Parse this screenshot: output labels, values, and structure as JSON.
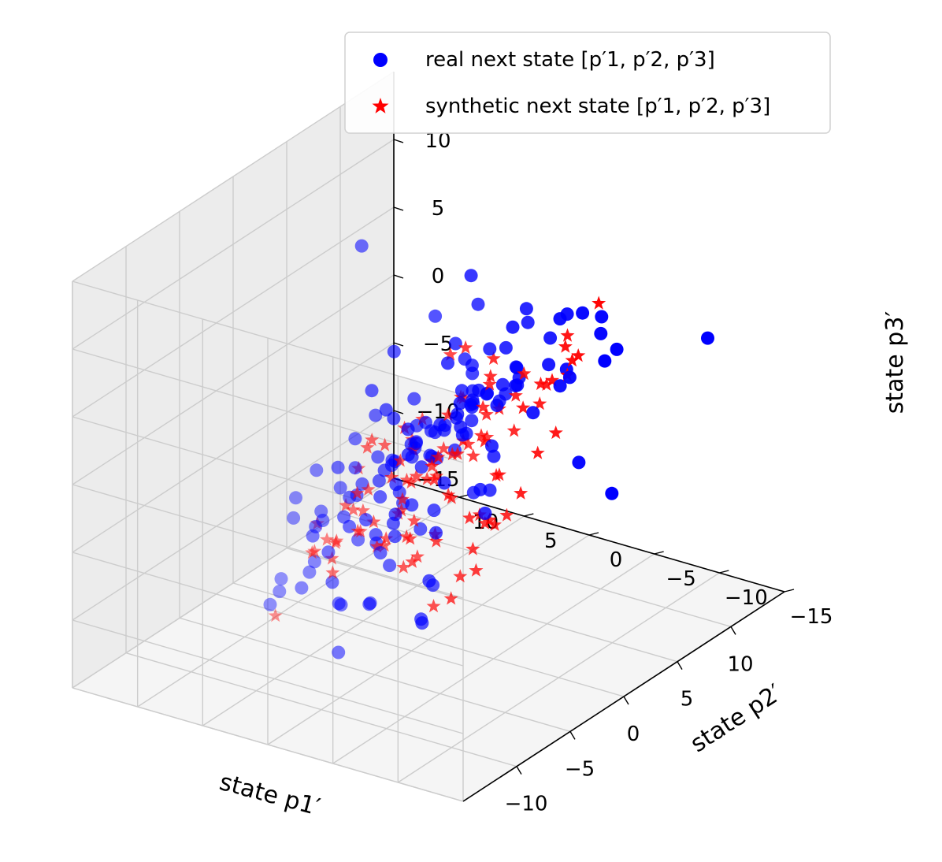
{
  "chart_data": {
    "type": "scatter",
    "projection": "3d",
    "grid": true,
    "legend_position": "upper-right",
    "xlabel": "state p1′",
    "ylabel": "state p2′",
    "zlabel": "state p3′",
    "xticks": [
      "−10",
      "−5",
      "0",
      "5",
      "10"
    ],
    "yticks": [
      "−15",
      "−10",
      "−5",
      "0",
      "5",
      "10"
    ],
    "zticks": [
      "−15",
      "−10",
      "−5",
      "0",
      "5",
      "10"
    ],
    "legend": [
      {
        "label": "real next state [p′1, p′2, p′3]",
        "marker": "circle",
        "color": "#0000ff"
      },
      {
        "label": "synthetic next state [p′1, p′2, p′3]",
        "marker": "star",
        "color": "#ff0000"
      }
    ],
    "series": [
      {
        "name": "real next state [p′1, p′2, p′3]",
        "color": "#0000ff",
        "marker": "circle",
        "points": [
          [
            -2.1,
            3.4,
            14.2
          ],
          [
            -4.0,
            -7.1,
            13.8
          ],
          [
            -5.2,
            -4.8,
            12.9
          ],
          [
            1.8,
            -0.6,
            6.1
          ],
          [
            7.5,
            2.9,
            7.2
          ],
          [
            -3.1,
            -5.9,
            8.5
          ],
          [
            -6.4,
            -1.2,
            5.2
          ],
          [
            -4.5,
            -2.8,
            3.9
          ],
          [
            4.2,
            6.1,
            2.4
          ],
          [
            -6.0,
            -8.4,
            1.3
          ],
          [
            -1.2,
            -4.3,
            3.0
          ],
          [
            -4.2,
            -4.1,
            1.7
          ],
          [
            -1.8,
            -6.2,
            -1.3
          ],
          [
            -7.9,
            -2.5,
            -3.1
          ],
          [
            -8.8,
            1.9,
            -6.0
          ],
          [
            -6.5,
            -0.8,
            -8.8
          ],
          [
            -3.0,
            -1.9,
            -11.4
          ],
          [
            -3.3,
            4.2,
            -15.4
          ],
          [
            -1.2,
            -0.5,
            -13.0
          ],
          [
            2.5,
            2.0,
            -12.5
          ],
          [
            4.1,
            2.8,
            -10.0
          ],
          [
            6.3,
            1.2,
            -7.5
          ],
          [
            8.2,
            -4.8,
            -4.8
          ],
          [
            9.7,
            -6.1,
            -7.5
          ],
          [
            6.5,
            1.0,
            -9.3
          ],
          [
            1.6,
            2.6,
            -6.6
          ],
          [
            -0.7,
            -1.0,
            -4.8
          ],
          [
            -1.7,
            1.3,
            -5.9
          ],
          [
            0.8,
            0.4,
            -2.0
          ],
          [
            2.2,
            -1.1,
            -0.6
          ],
          [
            3.6,
            -0.9,
            1.8
          ],
          [
            1.0,
            -4.2,
            -0.8
          ],
          [
            -2.9,
            -2.5,
            0.8
          ],
          [
            -0.5,
            -3.8,
            4.0
          ],
          [
            3.1,
            -3.4,
            5.9
          ],
          [
            5.6,
            -0.1,
            3.6
          ],
          [
            3.8,
            -4.4,
            8.7
          ],
          [
            0.4,
            -6.4,
            6.7
          ],
          [
            -3.8,
            -0.9,
            -1.9
          ],
          [
            -5.7,
            -1.7,
            -6.1
          ],
          [
            -0.9,
            3.3,
            -7.7
          ],
          [
            2.7,
            4.8,
            -10.1
          ],
          [
            5.6,
            7.1,
            -8.4
          ],
          [
            7.5,
            3.7,
            -4.2
          ],
          [
            4.7,
            1.3,
            0.6
          ],
          [
            3.2,
            5.3,
            -1.8
          ],
          [
            0.7,
            6.2,
            -4.4
          ],
          [
            -2.3,
            1.8,
            -7.9
          ],
          [
            -4.6,
            3.1,
            -10.8
          ],
          [
            -1.6,
            5.4,
            -13.1
          ],
          [
            1.6,
            8.7,
            -14.0
          ],
          [
            6.2,
            9.9,
            -12.1
          ],
          [
            10.5,
            10.2,
            -9.6
          ],
          [
            12.8,
            8.1,
            -6.4
          ],
          [
            12.5,
            3.6,
            -3.7
          ],
          [
            11.0,
            -1.8,
            -0.8
          ],
          [
            8.8,
            -6.3,
            2.8
          ],
          [
            6.4,
            -9.2,
            5.7
          ],
          [
            3.2,
            -10.6,
            8.9
          ],
          [
            -0.3,
            -9.6,
            10.1
          ],
          [
            -3.5,
            -8.8,
            7.4
          ],
          [
            -6.9,
            -7.7,
            4.7
          ],
          [
            -9.2,
            -5.6,
            1.4
          ],
          [
            -10.1,
            -2.9,
            -1.6
          ],
          [
            -9.9,
            0.6,
            -4.3
          ],
          [
            -8.4,
            4.4,
            -7.4
          ],
          [
            -5.4,
            7.0,
            -10.6
          ],
          [
            -2.0,
            8.1,
            -12.4
          ],
          [
            1.6,
            10.2,
            -11.0
          ],
          [
            4.8,
            10.9,
            -7.8
          ],
          [
            7.6,
            9.5,
            -4.6
          ],
          [
            9.7,
            6.5,
            -1.4
          ],
          [
            10.3,
            2.0,
            2.2
          ],
          [
            9.0,
            -2.7,
            4.8
          ],
          [
            6.6,
            -6.4,
            7.5
          ],
          [
            3.1,
            -8.1,
            9.7
          ],
          [
            -0.2,
            -7.8,
            10.7
          ],
          [
            -3.9,
            -6.0,
            9.4
          ],
          [
            -6.2,
            -4.0,
            7.1
          ],
          [
            -7.7,
            -0.7,
            4.0
          ],
          [
            -7.9,
            2.1,
            1.0
          ],
          [
            -6.8,
            4.6,
            -2.3
          ],
          [
            -4.7,
            6.5,
            -5.4
          ],
          [
            -1.3,
            7.6,
            -8.1
          ],
          [
            2.1,
            7.8,
            -9.9
          ],
          [
            5.3,
            6.9,
            -10.4
          ],
          [
            7.8,
            5.2,
            -8.9
          ],
          [
            9.2,
            2.7,
            -6.2
          ],
          [
            9.4,
            -0.3,
            -3.0
          ],
          [
            8.4,
            -3.2,
            0.3
          ],
          [
            6.2,
            -5.5,
            3.3
          ],
          [
            3.2,
            -6.6,
            5.5
          ],
          [
            0.1,
            -6.7,
            6.9
          ],
          [
            -2.8,
            -5.7,
            6.4
          ],
          [
            -5.0,
            -3.9,
            4.7
          ],
          [
            -6.3,
            -1.3,
            2.1
          ],
          [
            -6.4,
            1.5,
            -0.9
          ],
          [
            -5.4,
            3.8,
            -3.8
          ],
          [
            -3.3,
            5.4,
            -6.0
          ],
          [
            -0.6,
            6.0,
            -7.3
          ],
          [
            2.3,
            5.6,
            -7.2
          ],
          [
            4.7,
            4.4,
            -5.9
          ],
          [
            6.1,
            2.4,
            -3.7
          ],
          [
            6.4,
            0.0,
            -1.0
          ],
          [
            5.5,
            -2.3,
            1.6
          ],
          [
            3.6,
            -4.0,
            3.6
          ],
          [
            1.1,
            -4.8,
            4.6
          ],
          [
            -1.4,
            -4.4,
            4.3
          ],
          [
            -3.4,
            -3.0,
            3.0
          ],
          [
            -4.6,
            -1.0,
            0.9
          ],
          [
            -4.6,
            1.3,
            -1.5
          ],
          [
            -3.6,
            3.1,
            -3.5
          ],
          [
            -1.7,
            4.1,
            -4.6
          ],
          [
            0.5,
            4.2,
            -4.7
          ],
          [
            2.6,
            3.4,
            -3.8
          ],
          [
            3.9,
            2.0,
            -2.1
          ],
          [
            4.3,
            0.2,
            -0.1
          ],
          [
            3.6,
            -1.5,
            1.7
          ],
          [
            2.2,
            -2.7,
            2.8
          ],
          [
            0.4,
            -3.1,
            3.1
          ],
          [
            -1.5,
            -2.5,
            2.3
          ],
          [
            -2.6,
            -1.1,
            0.8
          ],
          [
            -2.7,
            0.6,
            -0.9
          ],
          [
            -1.8,
            1.9,
            -2.1
          ],
          [
            -0.2,
            2.4,
            -2.4
          ],
          [
            1.4,
            2.1,
            -1.8
          ],
          [
            2.3,
            1.0,
            -0.6
          ],
          [
            2.1,
            -0.5,
            0.7
          ],
          [
            0.9,
            -1.4,
            1.3
          ],
          [
            -0.6,
            -1.0,
            0.9
          ],
          [
            -1.0,
            0.5,
            -0.2
          ],
          [
            0.2,
            1.1,
            -0.8
          ],
          [
            -11.5,
            -9.8,
            -2.3
          ],
          [
            -10.6,
            -8.1,
            0.9
          ],
          [
            -12.0,
            -5.4,
            -4.6
          ],
          [
            9.9,
            12.5,
            -5.2
          ],
          [
            12.2,
            11.6,
            -9.0
          ],
          [
            11.6,
            -11.9,
            4.6
          ],
          [
            -0.8,
            11.5,
            -15.2
          ],
          [
            5.0,
            11.8,
            -14.4
          ],
          [
            -7.6,
            -11.7,
            9.8
          ],
          [
            -9.4,
            -11.1,
            12.6
          ],
          [
            0.6,
            -12.8,
            12.1
          ]
        ]
      },
      {
        "name": "synthetic next state [p′1, p′2, p′3]",
        "color": "#ff0000",
        "marker": "star",
        "points": [
          [
            -1.6,
            -3.0,
            7.7
          ],
          [
            1.4,
            -1.7,
            6.3
          ],
          [
            3.4,
            -2.2,
            4.6
          ],
          [
            -2.6,
            -4.8,
            5.5
          ],
          [
            -4.1,
            -2.9,
            4.2
          ],
          [
            -0.2,
            -5.6,
            3.7
          ],
          [
            2.8,
            -4.4,
            2.8
          ],
          [
            4.5,
            -1.0,
            1.8
          ],
          [
            -4.8,
            -0.6,
            2.0
          ],
          [
            -3.4,
            1.9,
            0.4
          ],
          [
            -0.9,
            3.6,
            -0.8
          ],
          [
            1.9,
            3.4,
            -1.3
          ],
          [
            3.9,
            1.7,
            -0.9
          ],
          [
            4.6,
            -0.4,
            -0.1
          ],
          [
            -5.1,
            -2.2,
            -1.4
          ],
          [
            -2.9,
            -3.0,
            -0.6
          ],
          [
            -0.3,
            -3.3,
            0.5
          ],
          [
            2.5,
            -2.4,
            1.0
          ],
          [
            -5.8,
            1.0,
            -2.7
          ],
          [
            -3.7,
            3.3,
            -4.1
          ],
          [
            -0.7,
            4.9,
            -5.2
          ],
          [
            2.4,
            4.8,
            -5.6
          ],
          [
            4.8,
            3.2,
            -4.9
          ],
          [
            5.9,
            0.8,
            -3.2
          ],
          [
            -6.3,
            -1.8,
            -4.3
          ],
          [
            -4.2,
            0.5,
            -6.1
          ],
          [
            -1.4,
            2.1,
            -7.4
          ],
          [
            1.7,
            2.5,
            -7.8
          ],
          [
            4.1,
            1.6,
            -7.1
          ],
          [
            5.6,
            -0.6,
            -5.6
          ],
          [
            -2.1,
            -0.4,
            -2.2
          ],
          [
            -0.4,
            0.6,
            -2.9
          ],
          [
            1.3,
            0.8,
            -3.1
          ],
          [
            2.6,
            -0.1,
            -2.6
          ],
          [
            -1.3,
            -1.3,
            -0.8
          ],
          [
            0.4,
            -1.5,
            -1.1
          ],
          [
            1.9,
            -1.1,
            -1.0
          ],
          [
            -0.8,
            1.5,
            -1.8
          ],
          [
            0.9,
            1.9,
            -2.0
          ],
          [
            -2.7,
            2.4,
            -3.2
          ],
          [
            -5.6,
            -4.5,
            1.0
          ],
          [
            -3.6,
            -6.4,
            2.2
          ],
          [
            -1.0,
            -7.4,
            3.0
          ],
          [
            2.0,
            -6.9,
            3.3
          ],
          [
            4.4,
            -5.0,
            3.0
          ],
          [
            6.0,
            -2.4,
            2.2
          ],
          [
            6.4,
            0.5,
            1.0
          ],
          [
            -6.9,
            -3.6,
            -0.9
          ],
          [
            -7.2,
            -0.7,
            -3.1
          ],
          [
            -6.1,
            2.1,
            -5.3
          ],
          [
            -3.6,
            4.1,
            -7.0
          ],
          [
            -0.4,
            5.1,
            -8.2
          ],
          [
            2.9,
            4.7,
            -8.5
          ],
          [
            5.5,
            3.0,
            -8.0
          ],
          [
            7.1,
            0.4,
            -6.6
          ],
          [
            7.4,
            -2.3,
            -4.4
          ],
          [
            6.3,
            -4.6,
            -1.7
          ],
          [
            -2.4,
            -5.9,
            -2.9
          ],
          [
            -0.8,
            -5.0,
            -4.6
          ],
          [
            1.2,
            -4.1,
            -6.0
          ],
          [
            3.3,
            -3.3,
            -6.6
          ],
          [
            -4.0,
            -3.8,
            -4.1
          ],
          [
            -3.1,
            -1.7,
            -6.8
          ],
          [
            -1.6,
            0.6,
            -9.0
          ],
          [
            0.8,
            1.9,
            -10.2
          ],
          [
            3.4,
            2.2,
            -10.1
          ],
          [
            -0.2,
            -2.6,
            -9.5
          ],
          [
            2.2,
            -1.6,
            -9.0
          ],
          [
            4.5,
            -1.0,
            -8.2
          ],
          [
            -1.1,
            -1.3,
            -11.6
          ],
          [
            1.5,
            -0.5,
            -12.6
          ],
          [
            4.2,
            -0.2,
            -12.0
          ],
          [
            3.3,
            -7.8,
            7.1
          ],
          [
            0.2,
            -8.9,
            6.2
          ],
          [
            5.6,
            -6.9,
            5.0
          ],
          [
            -3.9,
            -7.7,
            4.1
          ],
          [
            7.1,
            -5.2,
            3.4
          ],
          [
            -6.0,
            -6.1,
            3.9
          ],
          [
            7.9,
            -3.0,
            0.9
          ],
          [
            -7.5,
            -4.5,
            1.9
          ],
          [
            -8.3,
            -1.8,
            -0.7
          ],
          [
            8.1,
            -0.6,
            -1.9
          ],
          [
            -7.9,
            1.3,
            -3.9
          ],
          [
            7.3,
            1.7,
            -4.6
          ],
          [
            -6.0,
            4.0,
            -6.6
          ],
          [
            5.4,
            4.0,
            -7.1
          ],
          [
            -3.1,
            6.2,
            -8.6
          ],
          [
            2.3,
            6.1,
            -9.2
          ],
          [
            -0.5,
            7.0,
            -10.7
          ],
          [
            5.0,
            5.8,
            -11.6
          ],
          [
            7.6,
            3.1,
            -10.8
          ],
          [
            9.1,
            0.4,
            -9.0
          ],
          [
            -9.2,
            -2.2,
            3.0
          ],
          [
            -8.7,
            -5.9,
            5.9
          ],
          [
            -6.7,
            -8.0,
            8.6
          ],
          [
            0.7,
            -10.1,
            9.9
          ],
          [
            5.2,
            -8.8,
            9.6
          ],
          [
            -3.1,
            9.2,
            -14.2
          ],
          [
            2.0,
            9.0,
            -13.6
          ],
          [
            6.8,
            7.0,
            -13.0
          ],
          [
            -9.4,
            0.8,
            -1.8
          ],
          [
            9.8,
            -2.6,
            0.2
          ]
        ]
      }
    ]
  }
}
